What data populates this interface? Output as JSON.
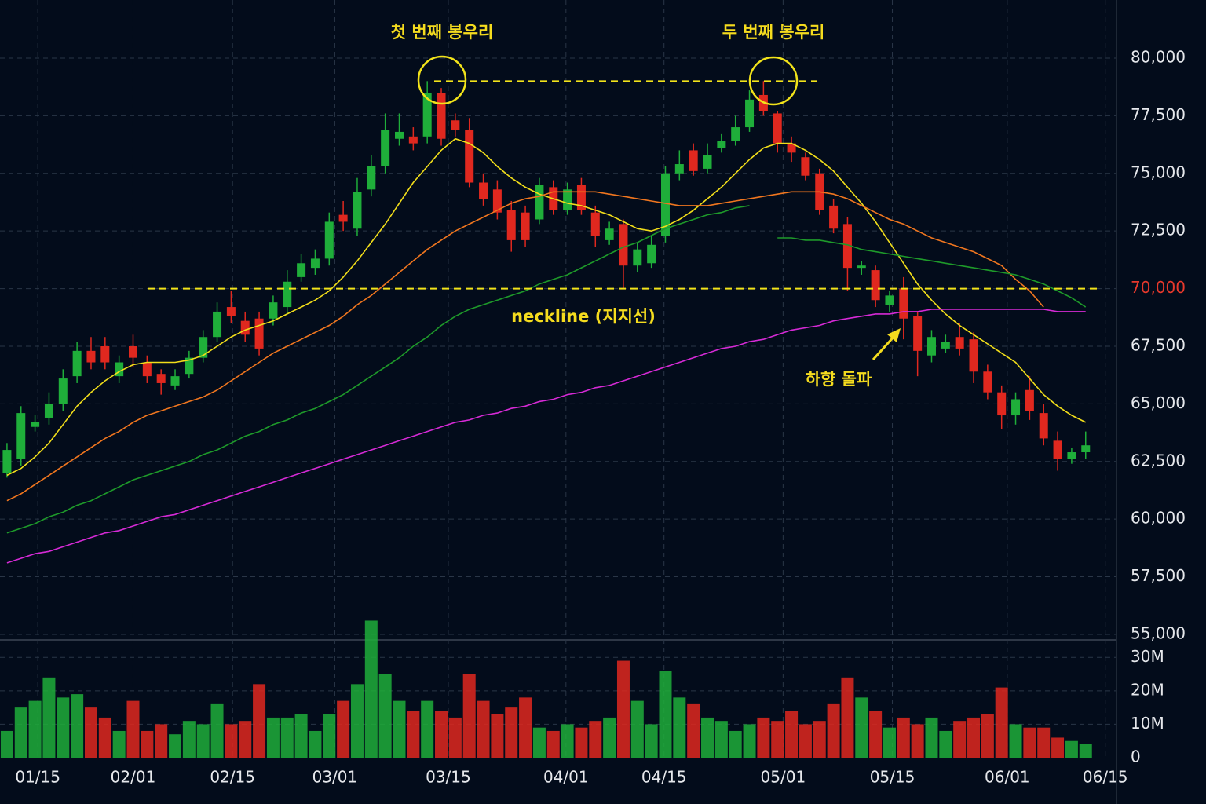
{
  "chart_data": {
    "type": "candlestick",
    "open": [
      62000,
      62600,
      64000,
      64400,
      65000,
      66200,
      67300,
      67500,
      66200,
      67500,
      66800,
      66300,
      65800,
      66300,
      67000,
      67900,
      69200,
      68600,
      68700,
      68700,
      69200,
      70500,
      70900,
      71300,
      73200,
      72600,
      74300,
      75300,
      76500,
      76600,
      76600,
      78500,
      77300,
      76900,
      74600,
      74300,
      73400,
      73300,
      73000,
      74400,
      73400,
      74500,
      73300,
      72100,
      72800,
      71000,
      71100,
      72300,
      75000,
      76000,
      75200,
      76100,
      76400,
      77000,
      78400,
      77600,
      76300,
      75700,
      75000,
      73600,
      72800,
      70900,
      70800,
      69300,
      70000,
      68800,
      67100,
      67400,
      67900,
      67800,
      66400,
      65500,
      64500,
      65600,
      64600,
      63400,
      62600,
      62900
    ],
    "high": [
      63300,
      64900,
      64500,
      65500,
      66500,
      67700,
      67900,
      67900,
      67100,
      68000,
      67100,
      66500,
      66500,
      67300,
      68200,
      69400,
      69900,
      69000,
      69000,
      69700,
      70800,
      71500,
      71700,
      73300,
      73800,
      74800,
      75800,
      77600,
      77600,
      77000,
      79000,
      78700,
      77600,
      77400,
      75000,
      74700,
      73800,
      73600,
      74800,
      74700,
      74600,
      74800,
      73600,
      72900,
      73000,
      72000,
      72300,
      75300,
      76000,
      76300,
      76300,
      76700,
      77500,
      78600,
      79000,
      77700,
      76600,
      75900,
      75200,
      73900,
      73100,
      71200,
      71000,
      69900,
      70500,
      69000,
      68200,
      68000,
      68500,
      68100,
      66700,
      65800,
      65500,
      66200,
      65000,
      63800,
      63100,
      63800
    ],
    "low": [
      61800,
      62300,
      63800,
      64100,
      64700,
      65900,
      66500,
      66500,
      65900,
      66600,
      65900,
      65400,
      65600,
      66100,
      66800,
      67700,
      68500,
      67700,
      67100,
      68400,
      68900,
      70300,
      70600,
      71000,
      72500,
      72300,
      74000,
      75000,
      76200,
      76000,
      76300,
      76200,
      76600,
      74400,
      73600,
      73000,
      71600,
      71800,
      72800,
      73200,
      73200,
      73200,
      71800,
      71900,
      70000,
      70700,
      70900,
      72000,
      74700,
      74900,
      75000,
      75900,
      76200,
      76800,
      77500,
      75900,
      75500,
      74700,
      73200,
      72400,
      69900,
      70600,
      69200,
      69000,
      67800,
      66200,
      66800,
      67200,
      67100,
      65900,
      65200,
      63900,
      64100,
      64300,
      63200,
      62100,
      62400,
      62600
    ],
    "close": [
      63000,
      64600,
      64200,
      65000,
      66100,
      67300,
      66800,
      66800,
      66800,
      67000,
      66200,
      65900,
      66200,
      67000,
      67900,
      69000,
      68800,
      68000,
      67400,
      69400,
      70300,
      71100,
      71300,
      72900,
      72900,
      74200,
      75300,
      76900,
      76800,
      76300,
      78500,
      76500,
      76900,
      74600,
      73900,
      73300,
      72100,
      72100,
      74500,
      73400,
      74300,
      73400,
      72300,
      72600,
      71000,
      71700,
      71900,
      75000,
      75400,
      75100,
      75800,
      76400,
      77000,
      78200,
      77700,
      76300,
      75900,
      74900,
      73400,
      72600,
      70900,
      71000,
      69500,
      69700,
      68700,
      67300,
      67900,
      67700,
      67400,
      66400,
      65500,
      64500,
      65200,
      64700,
      63500,
      62600,
      62900,
      63200
    ],
    "volume": [
      8000000,
      15000000,
      17000000,
      24000000,
      18000000,
      19000000,
      15000000,
      12000000,
      8000000,
      17000000,
      8000000,
      10000000,
      7000000,
      11000000,
      10000000,
      16000000,
      10000000,
      11000000,
      22000000,
      12000000,
      12000000,
      13000000,
      8000000,
      13000000,
      17000000,
      22000000,
      41000000,
      25000000,
      17000000,
      14000000,
      17000000,
      14000000,
      12000000,
      25000000,
      17000000,
      13000000,
      15000000,
      18000000,
      9000000,
      8000000,
      10000000,
      9000000,
      11000000,
      12000000,
      29000000,
      17000000,
      10000000,
      26000000,
      18000000,
      16000000,
      12000000,
      11000000,
      8000000,
      10000000,
      12000000,
      11000000,
      14000000,
      10000000,
      11000000,
      16000000,
      24000000,
      18000000,
      14000000,
      9000000,
      12000000,
      10000000,
      12000000,
      8000000,
      11000000,
      12000000,
      13000000,
      21000000,
      10000000,
      9000000,
      9000000,
      6000000,
      5000000,
      4000000
    ],
    "up_color": "#1fae3a",
    "down_color": "#e0281f",
    "moving_averages": [
      {
        "color": "#f2de1a",
        "values": [
          61900,
          62200,
          62700,
          63300,
          64100,
          64900,
          65500,
          66000,
          66400,
          66700,
          66800,
          66800,
          66800,
          66900,
          67100,
          67500,
          67900,
          68200,
          68400,
          68600,
          68900,
          69200,
          69500,
          69900,
          70500,
          71200,
          72000,
          72800,
          73700,
          74600,
          75300,
          76000,
          76500,
          76300,
          75900,
          75300,
          74800,
          74400,
          74100,
          73900,
          73700,
          73600,
          73400,
          73200,
          72900,
          72600,
          72500,
          72700,
          73000,
          73400,
          73900,
          74400,
          75000,
          75600,
          76100,
          76300,
          76300,
          76000,
          75600,
          75100,
          74400,
          73700,
          72900,
          72000,
          71100,
          70200,
          69500,
          68900,
          68400,
          68000,
          67600,
          67200,
          66800,
          66100,
          65400,
          64900,
          64500,
          64200
        ]
      },
      {
        "color": "#f0761f",
        "values": [
          60800,
          61100,
          61500,
          61900,
          62300,
          62700,
          63100,
          63500,
          63800,
          64200,
          64500,
          64700,
          64900,
          65100,
          65300,
          65600,
          66000,
          66400,
          66800,
          67200,
          67500,
          67800,
          68100,
          68400,
          68800,
          69300,
          69700,
          70200,
          70700,
          71200,
          71700,
          72100,
          72500,
          72800,
          73100,
          73400,
          73700,
          73900,
          74000,
          74200,
          74200,
          74200,
          74200,
          74100,
          74000,
          73900,
          73800,
          73700,
          73600,
          73600,
          73600,
          73700,
          73800,
          73900,
          74000,
          74100,
          74200,
          74200,
          74200,
          74100,
          73900,
          73600,
          73300,
          73000,
          72800,
          72500,
          72200,
          72000,
          71800,
          71600,
          71300,
          71000,
          70400,
          69900,
          69200,
          null,
          null,
          null
        ]
      },
      {
        "color": "#1e9a2a",
        "values": [
          59400,
          59600,
          59800,
          60100,
          60300,
          60600,
          60800,
          61100,
          61400,
          61700,
          61900,
          62100,
          62300,
          62500,
          62800,
          63000,
          63300,
          63600,
          63800,
          64100,
          64300,
          64600,
          64800,
          65100,
          65400,
          65800,
          66200,
          66600,
          67000,
          67500,
          67900,
          68400,
          68800,
          69100,
          69300,
          69500,
          69700,
          69900,
          70200,
          70400,
          70600,
          70900,
          71200,
          71500,
          71800,
          72000,
          72300,
          72600,
          72800,
          73000,
          73200,
          73300,
          73500,
          73600,
          null,
          72200,
          72200,
          72100,
          72100,
          72000,
          71900,
          71700,
          71600,
          71500,
          71400,
          71300,
          71200,
          71100,
          71000,
          70900,
          70800,
          70700,
          70600,
          70400,
          70200,
          69900,
          69600,
          69200
        ]
      },
      {
        "color": "#d62ad6",
        "values": [
          58100,
          58300,
          58500,
          58600,
          58800,
          59000,
          59200,
          59400,
          59500,
          59700,
          59900,
          60100,
          60200,
          60400,
          60600,
          60800,
          61000,
          61200,
          61400,
          61600,
          61800,
          62000,
          62200,
          62400,
          62600,
          62800,
          63000,
          63200,
          63400,
          63600,
          63800,
          64000,
          64200,
          64300,
          64500,
          64600,
          64800,
          64900,
          65100,
          65200,
          65400,
          65500,
          65700,
          65800,
          66000,
          66200,
          66400,
          66600,
          66800,
          67000,
          67200,
          67400,
          67500,
          67700,
          67800,
          68000,
          68200,
          68300,
          68400,
          68600,
          68700,
          68800,
          68900,
          68900,
          69000,
          69000,
          69100,
          69100,
          69100,
          69100,
          69100,
          69100,
          69100,
          69100,
          69100,
          69000,
          69000,
          69000
        ]
      }
    ],
    "xlim": [
      -0.5,
      79.2
    ],
    "xticks": [
      {
        "value": 2.2,
        "label": "01/15"
      },
      {
        "value": 9.0,
        "label": "02/01"
      },
      {
        "value": 16.1,
        "label": "02/15"
      },
      {
        "value": 23.4,
        "label": "03/01"
      },
      {
        "value": 31.5,
        "label": "03/15"
      },
      {
        "value": 39.9,
        "label": "04/01"
      },
      {
        "value": 46.9,
        "label": "04/15"
      },
      {
        "value": 55.4,
        "label": "05/01"
      },
      {
        "value": 63.2,
        "label": "05/15"
      },
      {
        "value": 71.4,
        "label": "06/01"
      },
      {
        "value": 78.4,
        "label": "06/15"
      }
    ],
    "ylim": [
      54760,
      82520
    ],
    "yticks": [
      {
        "value": 55000,
        "label": "55,000"
      },
      {
        "value": 57500,
        "label": "57,500"
      },
      {
        "value": 60000,
        "label": "60,000"
      },
      {
        "value": 62500,
        "label": "62,500"
      },
      {
        "value": 65000,
        "label": "65,000"
      },
      {
        "value": 67500,
        "label": "67,500"
      },
      {
        "value": 70000,
        "label": "70,000"
      },
      {
        "value": 72500,
        "label": "72,500"
      },
      {
        "value": 75000,
        "label": "75,000"
      },
      {
        "value": 77500,
        "label": "77,500"
      },
      {
        "value": 80000,
        "label": "80,000"
      }
    ],
    "y2lim": [
      0,
      35000000
    ],
    "y2ticks": [
      0,
      {
        "value": 10000000,
        "label": "10M"
      },
      {
        "value": 20000000,
        "label": "20M"
      },
      {
        "value": 30000000,
        "label": "30M"
      }
    ],
    "grid": true,
    "annotations": [
      {
        "text": "첫 번째 봉우리"
      },
      {
        "text": "두 번째 봉우리"
      }
    ],
    "resistance": 79000,
    "neckline": {
      "label": "neckline (지지선)",
      "value": 70000
    },
    "breakout_label": "하향 돌파"
  }
}
